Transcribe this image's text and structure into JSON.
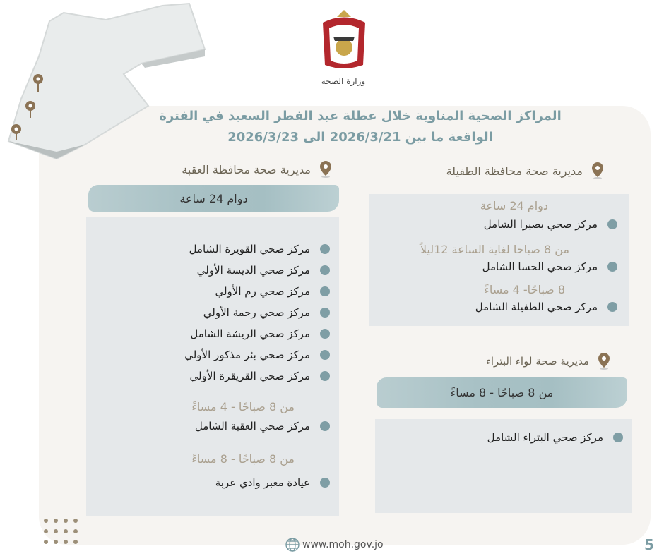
{
  "header": {
    "ministry_logo_text": "وزارة الصحة"
  },
  "title": {
    "line1": "المراكز الصحية المناوبة خلال عطلة عيد الفطر السعيد في  الفترة",
    "line2": "الواقعة ما بين  2026/3/21 الى  2026/3/23"
  },
  "aqaba": {
    "heading": "مديرية صحة محافظة العقبة",
    "bar_label": "دوام 24 ساعة",
    "centers_24h": [
      "مركز صحي القويرة الشامل",
      "مركز صحي الديسة  الأولي",
      "مركز صحي رم الأولي",
      "مركز صحي  رحمة الأولي",
      "مركز  صحي الريشة الشامل",
      "مركز صحي بئر مذكور الأولي",
      "مركز صحي القريقرة الأولي"
    ],
    "hours_2": "من 8 صباحًا - 4 مساءً",
    "center_2": "مركز صحي العقبة الشامل",
    "hours_3": "من 8 صباحًا - 8 مساءً",
    "center_3": "عيادة معبر وادي عربة"
  },
  "tafila": {
    "heading": "مديرية صحة محافظة الطفيلة",
    "hours_1": "دوام 24 ساعة",
    "center_1": "مركز صحي بصيرا الشامل",
    "hours_2": "من 8 صباحا لغاية الساعة 12ليلاً",
    "center_2": "مركز صحي الحسا الشامل",
    "hours_3": "8 صباحًا- 4 مساءً",
    "center_3": "مركز صحي الطفيلة الشامل"
  },
  "petra": {
    "heading": "مديرية صحة لواء البتراء",
    "bar_label": "من 8 صباحًا - 8 مساءً",
    "center_1": "مركز صحي البتراء الشامل"
  },
  "footer": {
    "website": "www.moh.gov.jo",
    "page_number": "5"
  },
  "colors": {
    "accent": "#7b9ca3",
    "pin": "#8b7355",
    "box": "#e5e8ea",
    "hours": "#aaa08f"
  }
}
